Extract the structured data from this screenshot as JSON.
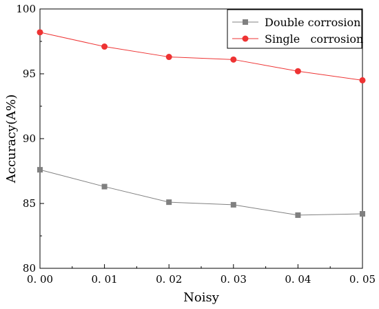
{
  "chart_data": {
    "type": "line",
    "title": "",
    "xlabel": "Noisy",
    "ylabel": "Accuracy(A%)",
    "x": [
      0.0,
      0.01,
      0.02,
      0.03,
      0.04,
      0.05
    ],
    "x_tick_labels": [
      "0. 00",
      "0. 01",
      "0. 02",
      "0. 03",
      "0. 04",
      "0. 05"
    ],
    "y_ticks": [
      80,
      85,
      90,
      95,
      100
    ],
    "y_tick_labels": [
      "80",
      "85",
      "90",
      "95",
      "100"
    ],
    "xlim": [
      0.0,
      0.05
    ],
    "ylim": [
      80,
      100
    ],
    "grid": false,
    "legend_position": "top-right",
    "series": [
      {
        "name": "Double corrosion",
        "color": "#808080",
        "marker": "square",
        "values": [
          87.6,
          86.3,
          85.1,
          84.9,
          84.1,
          84.2
        ]
      },
      {
        "name": "Single   corrosion",
        "color": "#ee3333",
        "marker": "circle",
        "values": [
          98.2,
          97.1,
          96.3,
          96.1,
          95.2,
          94.5
        ]
      }
    ]
  }
}
